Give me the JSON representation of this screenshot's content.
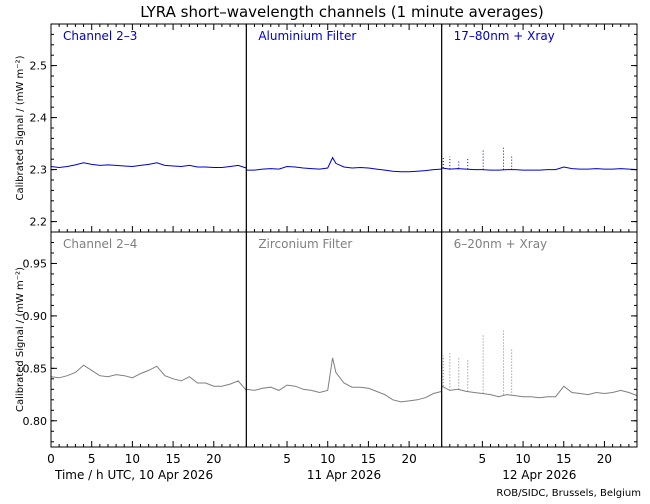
{
  "title": "LYRA short–wavelength channels (1 minute averages)",
  "footer": "ROB/SIDC, Brussels, Belgium",
  "colors": {
    "top": "#0000cc",
    "bottom": "#7f7f7f",
    "axis": "#000000"
  },
  "chart_data": {
    "type": "line",
    "x_unit": "hour UTC",
    "days": [
      {
        "label": "Time / h UTC, 10 Apr 2026"
      },
      {
        "label": "11 Apr 2026"
      },
      {
        "label": "12 Apr 2026"
      }
    ],
    "x_ticks": [
      0,
      5,
      10,
      15,
      20
    ],
    "rows": [
      {
        "ylabel": "Calibrated Signal / (mW m⁻²)",
        "ylim": [
          2.18,
          2.58
        ],
        "yticks": [
          2.2,
          2.3,
          2.4,
          2.5
        ],
        "tick_decimals": 1,
        "color": "#0000cc",
        "panels": [
          {
            "name": "Channel 2–3",
            "points": [
              [
                0,
                2.306
              ],
              [
                1,
                2.304
              ],
              [
                2,
                2.306
              ],
              [
                3,
                2.309
              ],
              [
                4,
                2.313
              ],
              [
                5,
                2.31
              ],
              [
                6,
                2.308
              ],
              [
                7,
                2.309
              ],
              [
                8,
                2.308
              ],
              [
                9,
                2.307
              ],
              [
                10,
                2.306
              ],
              [
                11,
                2.308
              ],
              [
                12,
                2.31
              ],
              [
                13,
                2.313
              ],
              [
                14,
                2.308
              ],
              [
                15,
                2.307
              ],
              [
                16,
                2.306
              ],
              [
                17,
                2.308
              ],
              [
                18,
                2.305
              ],
              [
                19,
                2.305
              ],
              [
                20,
                2.304
              ],
              [
                21,
                2.304
              ],
              [
                22,
                2.306
              ],
              [
                23,
                2.308
              ],
              [
                24,
                2.303
              ]
            ]
          },
          {
            "name": "Aluminium Filter",
            "points": [
              [
                0,
                2.299
              ],
              [
                1,
                2.299
              ],
              [
                2,
                2.301
              ],
              [
                3,
                2.302
              ],
              [
                4,
                2.301
              ],
              [
                5,
                2.306
              ],
              [
                6,
                2.305
              ],
              [
                7,
                2.303
              ],
              [
                8,
                2.302
              ],
              [
                9,
                2.301
              ],
              [
                10,
                2.303
              ],
              [
                10.6,
                2.323
              ],
              [
                11,
                2.312
              ],
              [
                12,
                2.305
              ],
              [
                13,
                2.303
              ],
              [
                14,
                2.304
              ],
              [
                15,
                2.303
              ],
              [
                16,
                2.301
              ],
              [
                17,
                2.299
              ],
              [
                18,
                2.297
              ],
              [
                19,
                2.296
              ],
              [
                20,
                2.296
              ],
              [
                21,
                2.297
              ],
              [
                22,
                2.298
              ],
              [
                23,
                2.3
              ],
              [
                24,
                2.301
              ]
            ]
          },
          {
            "name": "17–80nm + Xray",
            "points": [
              [
                0,
                2.303
              ],
              [
                1,
                2.301
              ],
              [
                2,
                2.302
              ],
              [
                3,
                2.301
              ],
              [
                4,
                2.3
              ],
              [
                5,
                2.3
              ],
              [
                6,
                2.299
              ],
              [
                7,
                2.299
              ],
              [
                8,
                2.3
              ],
              [
                9,
                2.3
              ],
              [
                10,
                2.299
              ],
              [
                11,
                2.299
              ],
              [
                12,
                2.299
              ],
              [
                13,
                2.3
              ],
              [
                14,
                2.3
              ],
              [
                15,
                2.305
              ],
              [
                16,
                2.302
              ],
              [
                17,
                2.301
              ],
              [
                18,
                2.301
              ],
              [
                19,
                2.302
              ],
              [
                20,
                2.301
              ],
              [
                21,
                2.301
              ],
              [
                22,
                2.302
              ],
              [
                23,
                2.301
              ],
              [
                24,
                2.3
              ]
            ]
          }
        ]
      },
      {
        "ylabel": "Calibrated Signal / (mW m⁻²)",
        "ylim": [
          0.775,
          0.98
        ],
        "yticks": [
          0.8,
          0.85,
          0.9,
          0.95
        ],
        "tick_decimals": 2,
        "color": "#7f7f7f",
        "panels": [
          {
            "name": "Channel 2–4",
            "points": [
              [
                0,
                0.842
              ],
              [
                1,
                0.841
              ],
              [
                2,
                0.843
              ],
              [
                3,
                0.846
              ],
              [
                4,
                0.853
              ],
              [
                5,
                0.848
              ],
              [
                6,
                0.843
              ],
              [
                7,
                0.842
              ],
              [
                8,
                0.844
              ],
              [
                9,
                0.843
              ],
              [
                10,
                0.841
              ],
              [
                11,
                0.845
              ],
              [
                12,
                0.848
              ],
              [
                13,
                0.852
              ],
              [
                14,
                0.843
              ],
              [
                15,
                0.84
              ],
              [
                16,
                0.838
              ],
              [
                17,
                0.842
              ],
              [
                18,
                0.836
              ],
              [
                19,
                0.836
              ],
              [
                20,
                0.833
              ],
              [
                21,
                0.833
              ],
              [
                22,
                0.835
              ],
              [
                23,
                0.838
              ],
              [
                24,
                0.829
              ]
            ]
          },
          {
            "name": "Zirconium Filter",
            "points": [
              [
                0,
                0.83
              ],
              [
                1,
                0.829
              ],
              [
                2,
                0.831
              ],
              [
                3,
                0.832
              ],
              [
                4,
                0.829
              ],
              [
                5,
                0.834
              ],
              [
                6,
                0.833
              ],
              [
                7,
                0.83
              ],
              [
                8,
                0.829
              ],
              [
                9,
                0.827
              ],
              [
                10,
                0.829
              ],
              [
                10.6,
                0.86
              ],
              [
                11,
                0.846
              ],
              [
                12,
                0.836
              ],
              [
                13,
                0.832
              ],
              [
                14,
                0.832
              ],
              [
                15,
                0.831
              ],
              [
                16,
                0.828
              ],
              [
                17,
                0.825
              ],
              [
                18,
                0.82
              ],
              [
                19,
                0.818
              ],
              [
                20,
                0.819
              ],
              [
                21,
                0.82
              ],
              [
                22,
                0.822
              ],
              [
                23,
                0.826
              ],
              [
                24,
                0.828
              ]
            ]
          },
          {
            "name": "6–20nm + Xray",
            "points": [
              [
                0,
                0.833
              ],
              [
                1,
                0.829
              ],
              [
                2,
                0.83
              ],
              [
                3,
                0.828
              ],
              [
                4,
                0.827
              ],
              [
                5,
                0.826
              ],
              [
                6,
                0.825
              ],
              [
                7,
                0.823
              ],
              [
                8,
                0.825
              ],
              [
                9,
                0.824
              ],
              [
                10,
                0.823
              ],
              [
                11,
                0.823
              ],
              [
                12,
                0.822
              ],
              [
                13,
                0.823
              ],
              [
                14,
                0.823
              ],
              [
                15,
                0.833
              ],
              [
                16,
                0.827
              ],
              [
                17,
                0.826
              ],
              [
                18,
                0.825
              ],
              [
                19,
                0.827
              ],
              [
                20,
                0.826
              ],
              [
                21,
                0.827
              ],
              [
                22,
                0.829
              ],
              [
                23,
                0.827
              ],
              [
                24,
                0.824
              ]
            ]
          }
        ]
      }
    ],
    "spikes": [
      {
        "hour": 0.2,
        "top_peak": 2.322,
        "bottom_peak": 0.862
      },
      {
        "hour": 1.0,
        "top_peak": 2.325,
        "bottom_peak": 0.866
      },
      {
        "hour": 2.1,
        "top_peak": 2.318,
        "bottom_peak": 0.86
      },
      {
        "hour": 3.2,
        "top_peak": 2.322,
        "bottom_peak": 0.858
      },
      {
        "hour": 5.1,
        "top_peak": 2.338,
        "bottom_peak": 0.882
      },
      {
        "hour": 7.6,
        "top_peak": 2.342,
        "bottom_peak": 0.886
      },
      {
        "hour": 8.6,
        "top_peak": 2.328,
        "bottom_peak": 0.868
      }
    ]
  }
}
